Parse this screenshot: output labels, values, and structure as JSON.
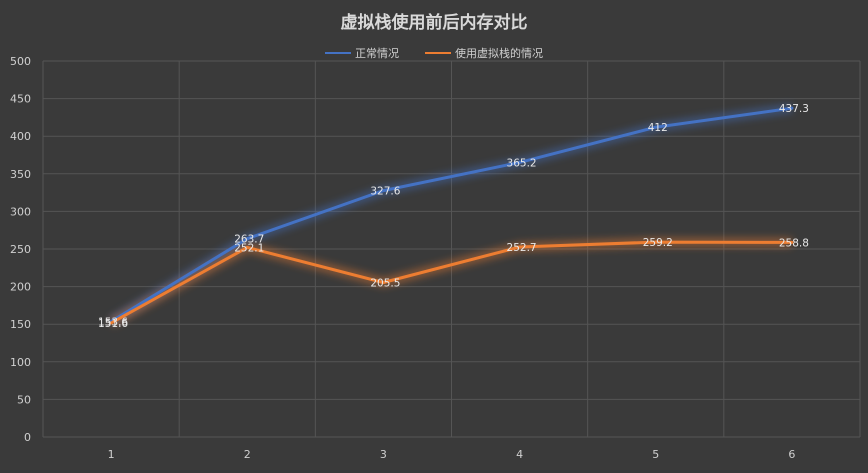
{
  "chart_data": {
    "type": "line",
    "title": "虚拟栈使用前后内存对比",
    "categories": [
      "1",
      "2",
      "3",
      "4",
      "5",
      "6"
    ],
    "series": [
      {
        "name": "正常情况",
        "color": "#4472c4",
        "values": [
          153.6,
          263.7,
          327.6,
          365.2,
          412,
          437.3
        ]
      },
      {
        "name": "使用虚拟栈的情况",
        "color": "#ed7d31",
        "values": [
          151.6,
          252.1,
          205.5,
          252.7,
          259.2,
          258.8
        ]
      }
    ],
    "ylim": [
      0,
      500
    ],
    "yticks": [
      0,
      50,
      100,
      150,
      200,
      250,
      300,
      350,
      400,
      450,
      500
    ],
    "grid": true,
    "legend_position": "top"
  }
}
